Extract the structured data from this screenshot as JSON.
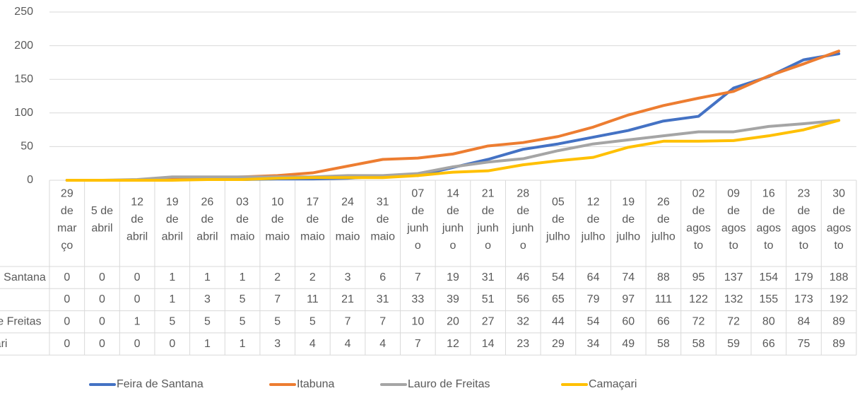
{
  "chart_data": {
    "type": "line",
    "categories": [
      "29 de março",
      "5 de abril",
      "12 de abril",
      "19 de abril",
      "26 de abril",
      "03 de maio",
      "10 de maio",
      "17 de maio",
      "24 de maio",
      "31 de maio",
      "07 de junho",
      "14 de junho",
      "21 de junho",
      "28 de junho",
      "05 de julho",
      "12 de julho",
      "19 de julho",
      "26 de julho",
      "02 de agosto",
      "09 de agosto",
      "16 de agosto",
      "23 de agosto",
      "30 de agosto"
    ],
    "series": [
      {
        "name": "Feira de Santana",
        "color": "#4472c4",
        "values": [
          0,
          0,
          0,
          1,
          1,
          1,
          2,
          2,
          3,
          6,
          7,
          19,
          31,
          46,
          54,
          64,
          74,
          88,
          95,
          137,
          154,
          179,
          188
        ]
      },
      {
        "name": "Itabuna",
        "color": "#ed7d31",
        "values": [
          0,
          0,
          0,
          1,
          3,
          5,
          7,
          11,
          21,
          31,
          33,
          39,
          51,
          56,
          65,
          79,
          97,
          111,
          122,
          132,
          155,
          173,
          192
        ]
      },
      {
        "name": "Lauro de Freitas",
        "color": "#a5a5a5",
        "values": [
          0,
          0,
          1,
          5,
          5,
          5,
          5,
          5,
          7,
          7,
          10,
          20,
          27,
          32,
          44,
          54,
          60,
          66,
          72,
          72,
          80,
          84,
          89
        ]
      },
      {
        "name": "Camaçari",
        "color": "#ffc000",
        "values": [
          0,
          0,
          0,
          0,
          1,
          1,
          3,
          4,
          4,
          4,
          7,
          12,
          14,
          23,
          29,
          34,
          49,
          58,
          58,
          59,
          66,
          75,
          89
        ]
      }
    ],
    "ylim": [
      0,
      250
    ],
    "yticks": [
      0,
      50,
      100,
      150,
      200,
      250
    ],
    "grid": true,
    "legend": "bottom",
    "data_table": true
  }
}
